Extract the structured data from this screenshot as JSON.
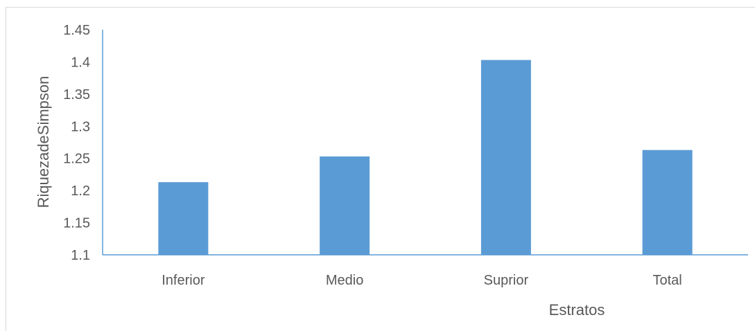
{
  "chart_data": {
    "type": "bar",
    "title": "",
    "categories": [
      "Inferior",
      "Medio",
      "Suprior",
      "Total"
    ],
    "values": [
      1.213,
      1.253,
      1.403,
      1.263
    ],
    "xlabel": "Estratos",
    "ylabel": "RiquezadeSimpson",
    "ylim": [
      1.1,
      1.45
    ],
    "yticks": [
      "1.1",
      "1.15",
      "1.2",
      "1.25",
      "1.3",
      "1.35",
      "1.4",
      "1.45"
    ],
    "grid": false,
    "legend": "none",
    "bar_color": "#5b9bd5",
    "axis_color": "#5b9bd5"
  }
}
